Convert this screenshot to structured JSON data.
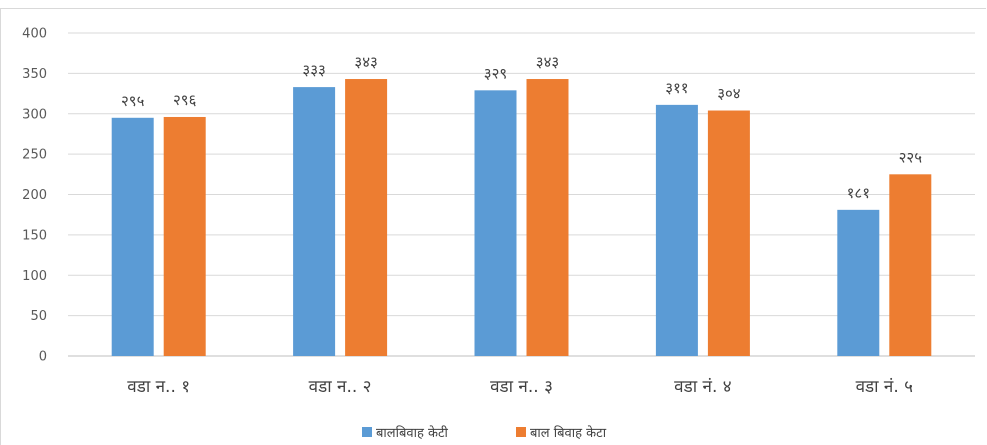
{
  "chart_data": {
    "type": "bar",
    "categories": [
      "वडा न.. १",
      "वडा न.. २",
      "वडा न.. ३",
      "वडा नं. ४",
      "वडा नं. ५"
    ],
    "series": [
      {
        "name": "बालबिवाह केटी",
        "color": "#5b9bd5",
        "values": [
          295,
          333,
          329,
          311,
          181
        ],
        "labels": [
          "२९५",
          "३३३",
          "३२९",
          "३११",
          "१८१"
        ]
      },
      {
        "name": "बाल बिवाह केटा",
        "color": "#ed7d31",
        "values": [
          296,
          343,
          343,
          304,
          225
        ],
        "labels": [
          "२९६",
          "३४३",
          "३४३",
          "३०४",
          "२२५"
        ]
      }
    ],
    "ylim": [
      0,
      400
    ],
    "yticks": [
      0,
      50,
      100,
      150,
      200,
      250,
      300,
      350,
      400
    ],
    "grid": true,
    "legend": "bottom",
    "title": "",
    "xlabel": "",
    "ylabel": ""
  }
}
